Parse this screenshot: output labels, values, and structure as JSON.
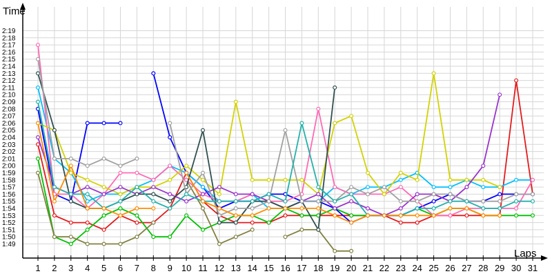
{
  "chart_data": {
    "type": "line",
    "xlabel": "Laps",
    "ylabel": "Time",
    "x": [
      1,
      2,
      3,
      4,
      5,
      6,
      7,
      8,
      9,
      10,
      11,
      12,
      13,
      14,
      15,
      16,
      17,
      18,
      19,
      20,
      21,
      22,
      23,
      24,
      25,
      26,
      27,
      28,
      29,
      30,
      31
    ],
    "x_ticks": [
      "1",
      "2",
      "3",
      "4",
      "5",
      "6",
      "7",
      "8",
      "9",
      "10",
      "11",
      "12",
      "13",
      "14",
      "15",
      "16",
      "17",
      "18",
      "19",
      "20",
      "21",
      "22",
      "23",
      "24",
      "25",
      "26",
      "27",
      "28",
      "29",
      "30",
      "31"
    ],
    "y_ticks": [
      "1:49",
      "1:50",
      "1:51",
      "1:52",
      "1:53",
      "1:54",
      "1:55",
      "1:56",
      "1:57",
      "1:58",
      "1:59",
      "2:00",
      "2:01",
      "2:02",
      "2:03",
      "2:04",
      "2:05",
      "2:06",
      "2:07",
      "2:08",
      "2:09",
      "2:10",
      "2:11",
      "2:12",
      "2:13",
      "2:14",
      "2:15",
      "2:16",
      "2:17",
      "2:18",
      "2:19"
    ],
    "ylim_seconds": [
      108,
      141
    ],
    "grid": true,
    "series": [
      {
        "color": "#e41a1c",
        "values": [
          123,
          113,
          112,
          112,
          111,
          113,
          112,
          112,
          114,
          119,
          115,
          113,
          112,
          112,
          112,
          113,
          113,
          113,
          113,
          113,
          113,
          113,
          112,
          112,
          113,
          113,
          113,
          113,
          113,
          132,
          116
        ]
      },
      {
        "color": "#00c000",
        "values": [
          121,
          110,
          109,
          111,
          113,
          114,
          113,
          110,
          110,
          113,
          111,
          112,
          113,
          113,
          112,
          114,
          113,
          113,
          114,
          113,
          113,
          113,
          113,
          114,
          113,
          114,
          114,
          113,
          113,
          113,
          113
        ]
      },
      {
        "color": "#808040",
        "values": [
          119,
          110,
          110,
          109,
          109,
          109,
          110,
          112,
          null,
          118,
          114,
          109,
          110,
          111,
          null,
          110,
          111,
          111,
          108,
          108,
          null,
          null,
          null,
          null,
          null,
          null,
          null,
          null,
          null,
          null,
          null
        ]
      },
      {
        "color": "#0000ff",
        "values": [
          128,
          116,
          115,
          126,
          126,
          126,
          null,
          133,
          124,
          119,
          117,
          114,
          115,
          115,
          116,
          116,
          115,
          115,
          114,
          112,
          113,
          113,
          113,
          114,
          115,
          116,
          115,
          115,
          116,
          116,
          116
        ]
      },
      {
        "color": "#00bfff",
        "values": [
          131,
          121,
          119,
          115,
          116,
          116,
          117,
          118,
          120,
          119,
          117,
          115,
          115,
          116,
          114,
          114,
          115,
          115,
          117,
          116,
          117,
          117,
          118,
          119,
          117,
          117,
          118,
          117,
          117,
          118,
          118
        ]
      },
      {
        "color": "#ff69b4",
        "values": [
          137,
          116,
          116,
          114,
          116,
          119,
          119,
          118,
          120,
          118,
          116,
          115,
          115,
          116,
          115,
          115,
          116,
          128,
          117,
          116,
          116,
          116,
          117,
          115,
          113,
          113,
          114,
          114,
          114,
          114,
          118
        ]
      },
      {
        "color": "#d2d200",
        "values": [
          126,
          125,
          119,
          118,
          117,
          116,
          117,
          117,
          118,
          120,
          118,
          116,
          129,
          118,
          118,
          118,
          118,
          116,
          126,
          127,
          119,
          116,
          119,
          118,
          133,
          118,
          118,
          118,
          117,
          null,
          null
        ]
      },
      {
        "color": "#9932cc",
        "values": [
          124,
          117,
          116,
          117,
          116,
          117,
          116,
          117,
          116,
          115,
          116,
          117,
          116,
          116,
          115,
          114,
          115,
          116,
          114,
          115,
          114,
          113,
          114,
          116,
          116,
          115,
          117,
          120,
          130,
          null,
          null
        ]
      },
      {
        "color": "#2f4f4f",
        "values": [
          133,
          125,
          115,
          114,
          114,
          115,
          116,
          116,
          115,
          117,
          125,
          112,
          112,
          115,
          115,
          114,
          115,
          111,
          131,
          null,
          null,
          null,
          null,
          null,
          null,
          null,
          null,
          null,
          null,
          null,
          null
        ]
      },
      {
        "color": "#a0a0a0",
        "values": [
          135,
          121,
          121,
          120,
          121,
          120,
          121,
          null,
          126,
          116,
          119,
          113,
          114,
          114,
          115,
          125,
          115,
          115,
          115,
          117,
          116,
          117,
          115,
          115,
          116,
          116,
          115,
          115,
          115,
          116,
          116
        ]
      },
      {
        "color": "#20b2aa",
        "values": [
          129,
          117,
          116,
          116,
          114,
          115,
          117,
          115,
          114,
          116,
          115,
          115,
          115,
          115,
          116,
          115,
          126,
          117,
          115,
          116,
          113,
          113,
          113,
          114,
          114,
          115,
          115,
          114,
          114,
          115,
          115
        ]
      },
      {
        "color": "#ff8c00",
        "values": [
          126,
          115,
          120,
          114,
          114,
          113,
          114,
          114,
          null,
          119,
          115,
          114,
          113,
          113,
          114,
          114,
          114,
          114,
          113,
          112,
          113,
          113,
          113,
          113,
          113,
          114,
          114,
          113,
          113,
          null,
          null
        ]
      }
    ]
  }
}
